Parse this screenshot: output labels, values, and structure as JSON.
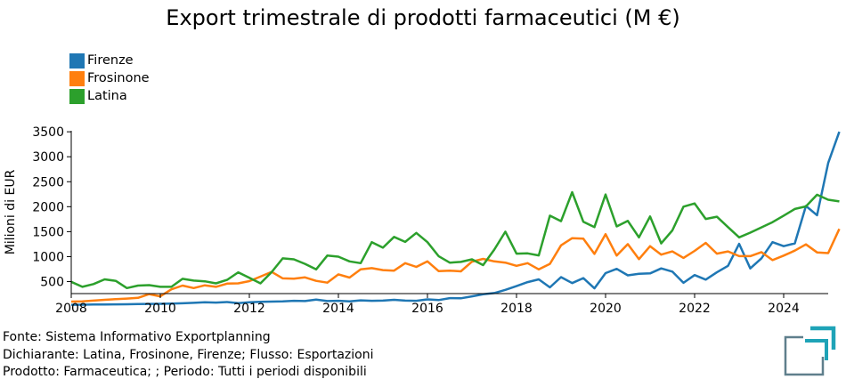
{
  "chart_data": {
    "type": "line",
    "title": "Export trimestrale di prodotti farmaceutici (M €)",
    "ylabel": "Milioni di EUR",
    "xlabel": "",
    "xlim": [
      2008,
      2025
    ],
    "ylim": [
      260,
      3520
    ],
    "x_ticks": [
      2008,
      2010,
      2012,
      2014,
      2016,
      2018,
      2020,
      2022,
      2024
    ],
    "x_tick_labels": [
      "2008",
      "2010",
      "2012",
      "2014",
      "2016",
      "2018",
      "2020",
      "2022",
      "2024"
    ],
    "y_ticks": [
      500,
      1000,
      1500,
      2000,
      2500,
      3000,
      3500
    ],
    "y_tick_labels": [
      "500",
      "1000",
      "1500",
      "2000",
      "2500",
      "3000",
      "3500"
    ],
    "grid": false,
    "legend_position": "top-left",
    "series": [
      {
        "name": "Firenze",
        "color": "#1f77b4",
        "points": [
          [
            2008.0,
            35
          ],
          [
            2008.25,
            37
          ],
          [
            2008.5,
            40
          ],
          [
            2008.75,
            42
          ],
          [
            2009.0,
            45
          ],
          [
            2009.25,
            47
          ],
          [
            2009.5,
            50
          ],
          [
            2009.75,
            53
          ],
          [
            2010.0,
            55
          ],
          [
            2010.25,
            58
          ],
          [
            2010.5,
            65
          ],
          [
            2010.75,
            75
          ],
          [
            2011.0,
            85
          ],
          [
            2011.25,
            80
          ],
          [
            2011.5,
            90
          ],
          [
            2011.75,
            70
          ],
          [
            2012.0,
            85
          ],
          [
            2012.25,
            95
          ],
          [
            2012.5,
            100
          ],
          [
            2012.75,
            105
          ],
          [
            2013.0,
            115
          ],
          [
            2013.25,
            110
          ],
          [
            2013.5,
            140
          ],
          [
            2013.75,
            110
          ],
          [
            2014.0,
            115
          ],
          [
            2014.25,
            105
          ],
          [
            2014.5,
            125
          ],
          [
            2014.75,
            115
          ],
          [
            2015.0,
            120
          ],
          [
            2015.25,
            135
          ],
          [
            2015.5,
            120
          ],
          [
            2015.75,
            115
          ],
          [
            2016.0,
            145
          ],
          [
            2016.25,
            130
          ],
          [
            2016.5,
            170
          ],
          [
            2016.75,
            165
          ],
          [
            2017.0,
            205
          ],
          [
            2017.25,
            245
          ],
          [
            2017.5,
            270
          ],
          [
            2017.75,
            335
          ],
          [
            2018.0,
            410
          ],
          [
            2018.25,
            490
          ],
          [
            2018.5,
            545
          ],
          [
            2018.75,
            385
          ],
          [
            2019.0,
            590
          ],
          [
            2019.25,
            470
          ],
          [
            2019.5,
            570
          ],
          [
            2019.75,
            365
          ],
          [
            2020.0,
            670
          ],
          [
            2020.25,
            755
          ],
          [
            2020.5,
            625
          ],
          [
            2020.75,
            655
          ],
          [
            2021.0,
            665
          ],
          [
            2021.25,
            765
          ],
          [
            2021.5,
            700
          ],
          [
            2021.75,
            475
          ],
          [
            2022.0,
            630
          ],
          [
            2022.25,
            540
          ],
          [
            2022.5,
            685
          ],
          [
            2022.75,
            815
          ],
          [
            2023.0,
            1255
          ],
          [
            2023.25,
            765
          ],
          [
            2023.5,
            965
          ],
          [
            2023.75,
            1290
          ],
          [
            2024.0,
            1210
          ],
          [
            2024.25,
            1265
          ],
          [
            2024.5,
            2015
          ],
          [
            2024.75,
            1830
          ],
          [
            2025.0,
            2875
          ],
          [
            2025.25,
            3500
          ]
        ]
      },
      {
        "name": "Frosinone",
        "color": "#ff7f0e",
        "points": [
          [
            2008.0,
            100
          ],
          [
            2008.25,
            105
          ],
          [
            2008.5,
            120
          ],
          [
            2008.75,
            135
          ],
          [
            2009.0,
            150
          ],
          [
            2009.25,
            160
          ],
          [
            2009.5,
            175
          ],
          [
            2009.75,
            250
          ],
          [
            2010.0,
            205
          ],
          [
            2010.25,
            345
          ],
          [
            2010.5,
            420
          ],
          [
            2010.75,
            370
          ],
          [
            2011.0,
            425
          ],
          [
            2011.25,
            395
          ],
          [
            2011.5,
            460
          ],
          [
            2011.75,
            465
          ],
          [
            2012.0,
            510
          ],
          [
            2012.25,
            600
          ],
          [
            2012.5,
            695
          ],
          [
            2012.75,
            565
          ],
          [
            2013.0,
            560
          ],
          [
            2013.25,
            585
          ],
          [
            2013.5,
            515
          ],
          [
            2013.75,
            480
          ],
          [
            2014.0,
            645
          ],
          [
            2014.25,
            580
          ],
          [
            2014.5,
            745
          ],
          [
            2014.75,
            770
          ],
          [
            2015.0,
            730
          ],
          [
            2015.25,
            720
          ],
          [
            2015.5,
            870
          ],
          [
            2015.75,
            795
          ],
          [
            2016.0,
            905
          ],
          [
            2016.25,
            710
          ],
          [
            2016.5,
            720
          ],
          [
            2016.75,
            705
          ],
          [
            2017.0,
            900
          ],
          [
            2017.25,
            955
          ],
          [
            2017.5,
            905
          ],
          [
            2017.75,
            880
          ],
          [
            2018.0,
            815
          ],
          [
            2018.25,
            870
          ],
          [
            2018.5,
            745
          ],
          [
            2018.75,
            855
          ],
          [
            2019.0,
            1225
          ],
          [
            2019.25,
            1370
          ],
          [
            2019.5,
            1360
          ],
          [
            2019.75,
            1055
          ],
          [
            2020.0,
            1450
          ],
          [
            2020.25,
            1020
          ],
          [
            2020.5,
            1250
          ],
          [
            2020.75,
            950
          ],
          [
            2021.0,
            1210
          ],
          [
            2021.25,
            1040
          ],
          [
            2021.5,
            1105
          ],
          [
            2021.75,
            975
          ],
          [
            2022.0,
            1115
          ],
          [
            2022.25,
            1275
          ],
          [
            2022.5,
            1060
          ],
          [
            2022.75,
            1105
          ],
          [
            2023.0,
            1010
          ],
          [
            2023.25,
            1010
          ],
          [
            2023.5,
            1090
          ],
          [
            2023.75,
            930
          ],
          [
            2024.0,
            1020
          ],
          [
            2024.25,
            1120
          ],
          [
            2024.5,
            1245
          ],
          [
            2024.75,
            1085
          ],
          [
            2025.0,
            1070
          ],
          [
            2025.25,
            1555
          ]
        ]
      },
      {
        "name": "Latina",
        "color": "#2ca02c",
        "points": [
          [
            2008.0,
            495
          ],
          [
            2008.25,
            395
          ],
          [
            2008.5,
            450
          ],
          [
            2008.75,
            545
          ],
          [
            2009.0,
            515
          ],
          [
            2009.25,
            370
          ],
          [
            2009.5,
            420
          ],
          [
            2009.75,
            430
          ],
          [
            2010.0,
            395
          ],
          [
            2010.25,
            395
          ],
          [
            2010.5,
            555
          ],
          [
            2010.75,
            520
          ],
          [
            2011.0,
            505
          ],
          [
            2011.25,
            465
          ],
          [
            2011.5,
            535
          ],
          [
            2011.75,
            685
          ],
          [
            2012.0,
            575
          ],
          [
            2012.25,
            465
          ],
          [
            2012.5,
            690
          ],
          [
            2012.75,
            965
          ],
          [
            2013.0,
            945
          ],
          [
            2013.25,
            855
          ],
          [
            2013.5,
            745
          ],
          [
            2013.75,
            1020
          ],
          [
            2014.0,
            1000
          ],
          [
            2014.25,
            905
          ],
          [
            2014.5,
            870
          ],
          [
            2014.75,
            1290
          ],
          [
            2015.0,
            1180
          ],
          [
            2015.25,
            1395
          ],
          [
            2015.5,
            1295
          ],
          [
            2015.75,
            1475
          ],
          [
            2016.0,
            1290
          ],
          [
            2016.25,
            1010
          ],
          [
            2016.5,
            880
          ],
          [
            2016.75,
            895
          ],
          [
            2017.0,
            945
          ],
          [
            2017.25,
            830
          ],
          [
            2017.5,
            1140
          ],
          [
            2017.75,
            1500
          ],
          [
            2018.0,
            1060
          ],
          [
            2018.25,
            1065
          ],
          [
            2018.5,
            1025
          ],
          [
            2018.75,
            1820
          ],
          [
            2019.0,
            1710
          ],
          [
            2019.25,
            2290
          ],
          [
            2019.5,
            1700
          ],
          [
            2019.75,
            1590
          ],
          [
            2020.0,
            2245
          ],
          [
            2020.25,
            1605
          ],
          [
            2020.5,
            1715
          ],
          [
            2020.75,
            1385
          ],
          [
            2021.0,
            1805
          ],
          [
            2021.25,
            1265
          ],
          [
            2021.5,
            1525
          ],
          [
            2021.75,
            2000
          ],
          [
            2022.0,
            2065
          ],
          [
            2022.25,
            1755
          ],
          [
            2022.5,
            1800
          ],
          [
            2022.75,
            1590
          ],
          [
            2023.0,
            1385
          ],
          [
            2023.25,
            1480
          ],
          [
            2023.5,
            1585
          ],
          [
            2023.75,
            1690
          ],
          [
            2024.0,
            1820
          ],
          [
            2024.25,
            1955
          ],
          [
            2024.5,
            2005
          ],
          [
            2024.75,
            2240
          ],
          [
            2025.0,
            2140
          ],
          [
            2025.25,
            2105
          ]
        ]
      }
    ]
  },
  "footer": {
    "line1": "Fonte: Sistema Informativo Exportplanning",
    "line2": "Dichiarante: Latina, Frosinone, Firenze; Flusso: Esportazioni",
    "line3": "Prodotto: Farmaceutica; ; Periodo: Tutti i periodi disponibili"
  },
  "logo": {
    "icon": "exportplanning-logo-icon",
    "colors": [
      "#5f7f8c",
      "#1ea3b7"
    ]
  }
}
